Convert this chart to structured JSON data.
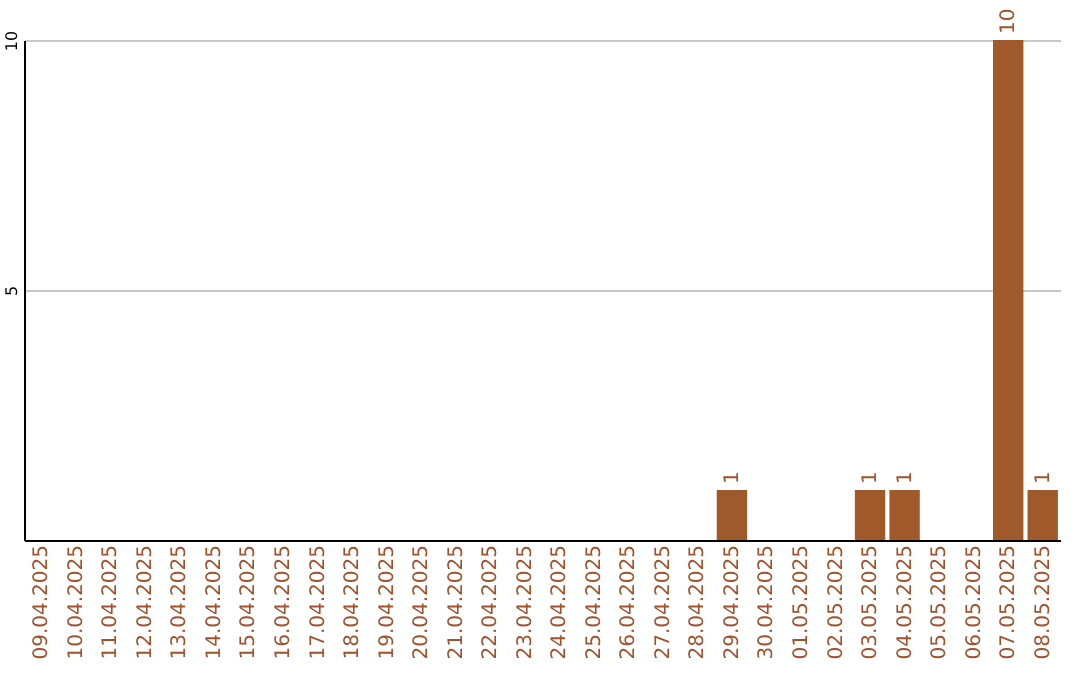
{
  "chart_data": {
    "type": "bar",
    "categories": [
      "09.04.2025",
      "10.04.2025",
      "11.04.2025",
      "12.04.2025",
      "13.04.2025",
      "14.04.2025",
      "15.04.2025",
      "16.04.2025",
      "17.04.2025",
      "18.04.2025",
      "19.04.2025",
      "20.04.2025",
      "21.04.2025",
      "22.04.2025",
      "23.04.2025",
      "24.04.2025",
      "25.04.2025",
      "26.04.2025",
      "27.04.2025",
      "28.04.2025",
      "29.04.2025",
      "30.04.2025",
      "01.05.2025",
      "02.05.2025",
      "03.05.2025",
      "04.05.2025",
      "05.05.2025",
      "06.05.2025",
      "07.05.2025",
      "08.05.2025"
    ],
    "values": [
      0,
      0,
      0,
      0,
      0,
      0,
      0,
      0,
      0,
      0,
      0,
      0,
      0,
      0,
      0,
      0,
      0,
      0,
      0,
      0,
      1,
      0,
      0,
      0,
      1,
      1,
      0,
      0,
      10,
      1
    ],
    "value_labels": [
      null,
      null,
      null,
      null,
      null,
      null,
      null,
      null,
      null,
      null,
      null,
      null,
      null,
      null,
      null,
      null,
      null,
      null,
      null,
      null,
      "1",
      null,
      null,
      null,
      "1",
      "1",
      null,
      null,
      "10",
      "1"
    ],
    "color": "#a0592a",
    "ylim": [
      0,
      10
    ],
    "yticks": [
      5,
      10
    ],
    "grid": "y"
  }
}
